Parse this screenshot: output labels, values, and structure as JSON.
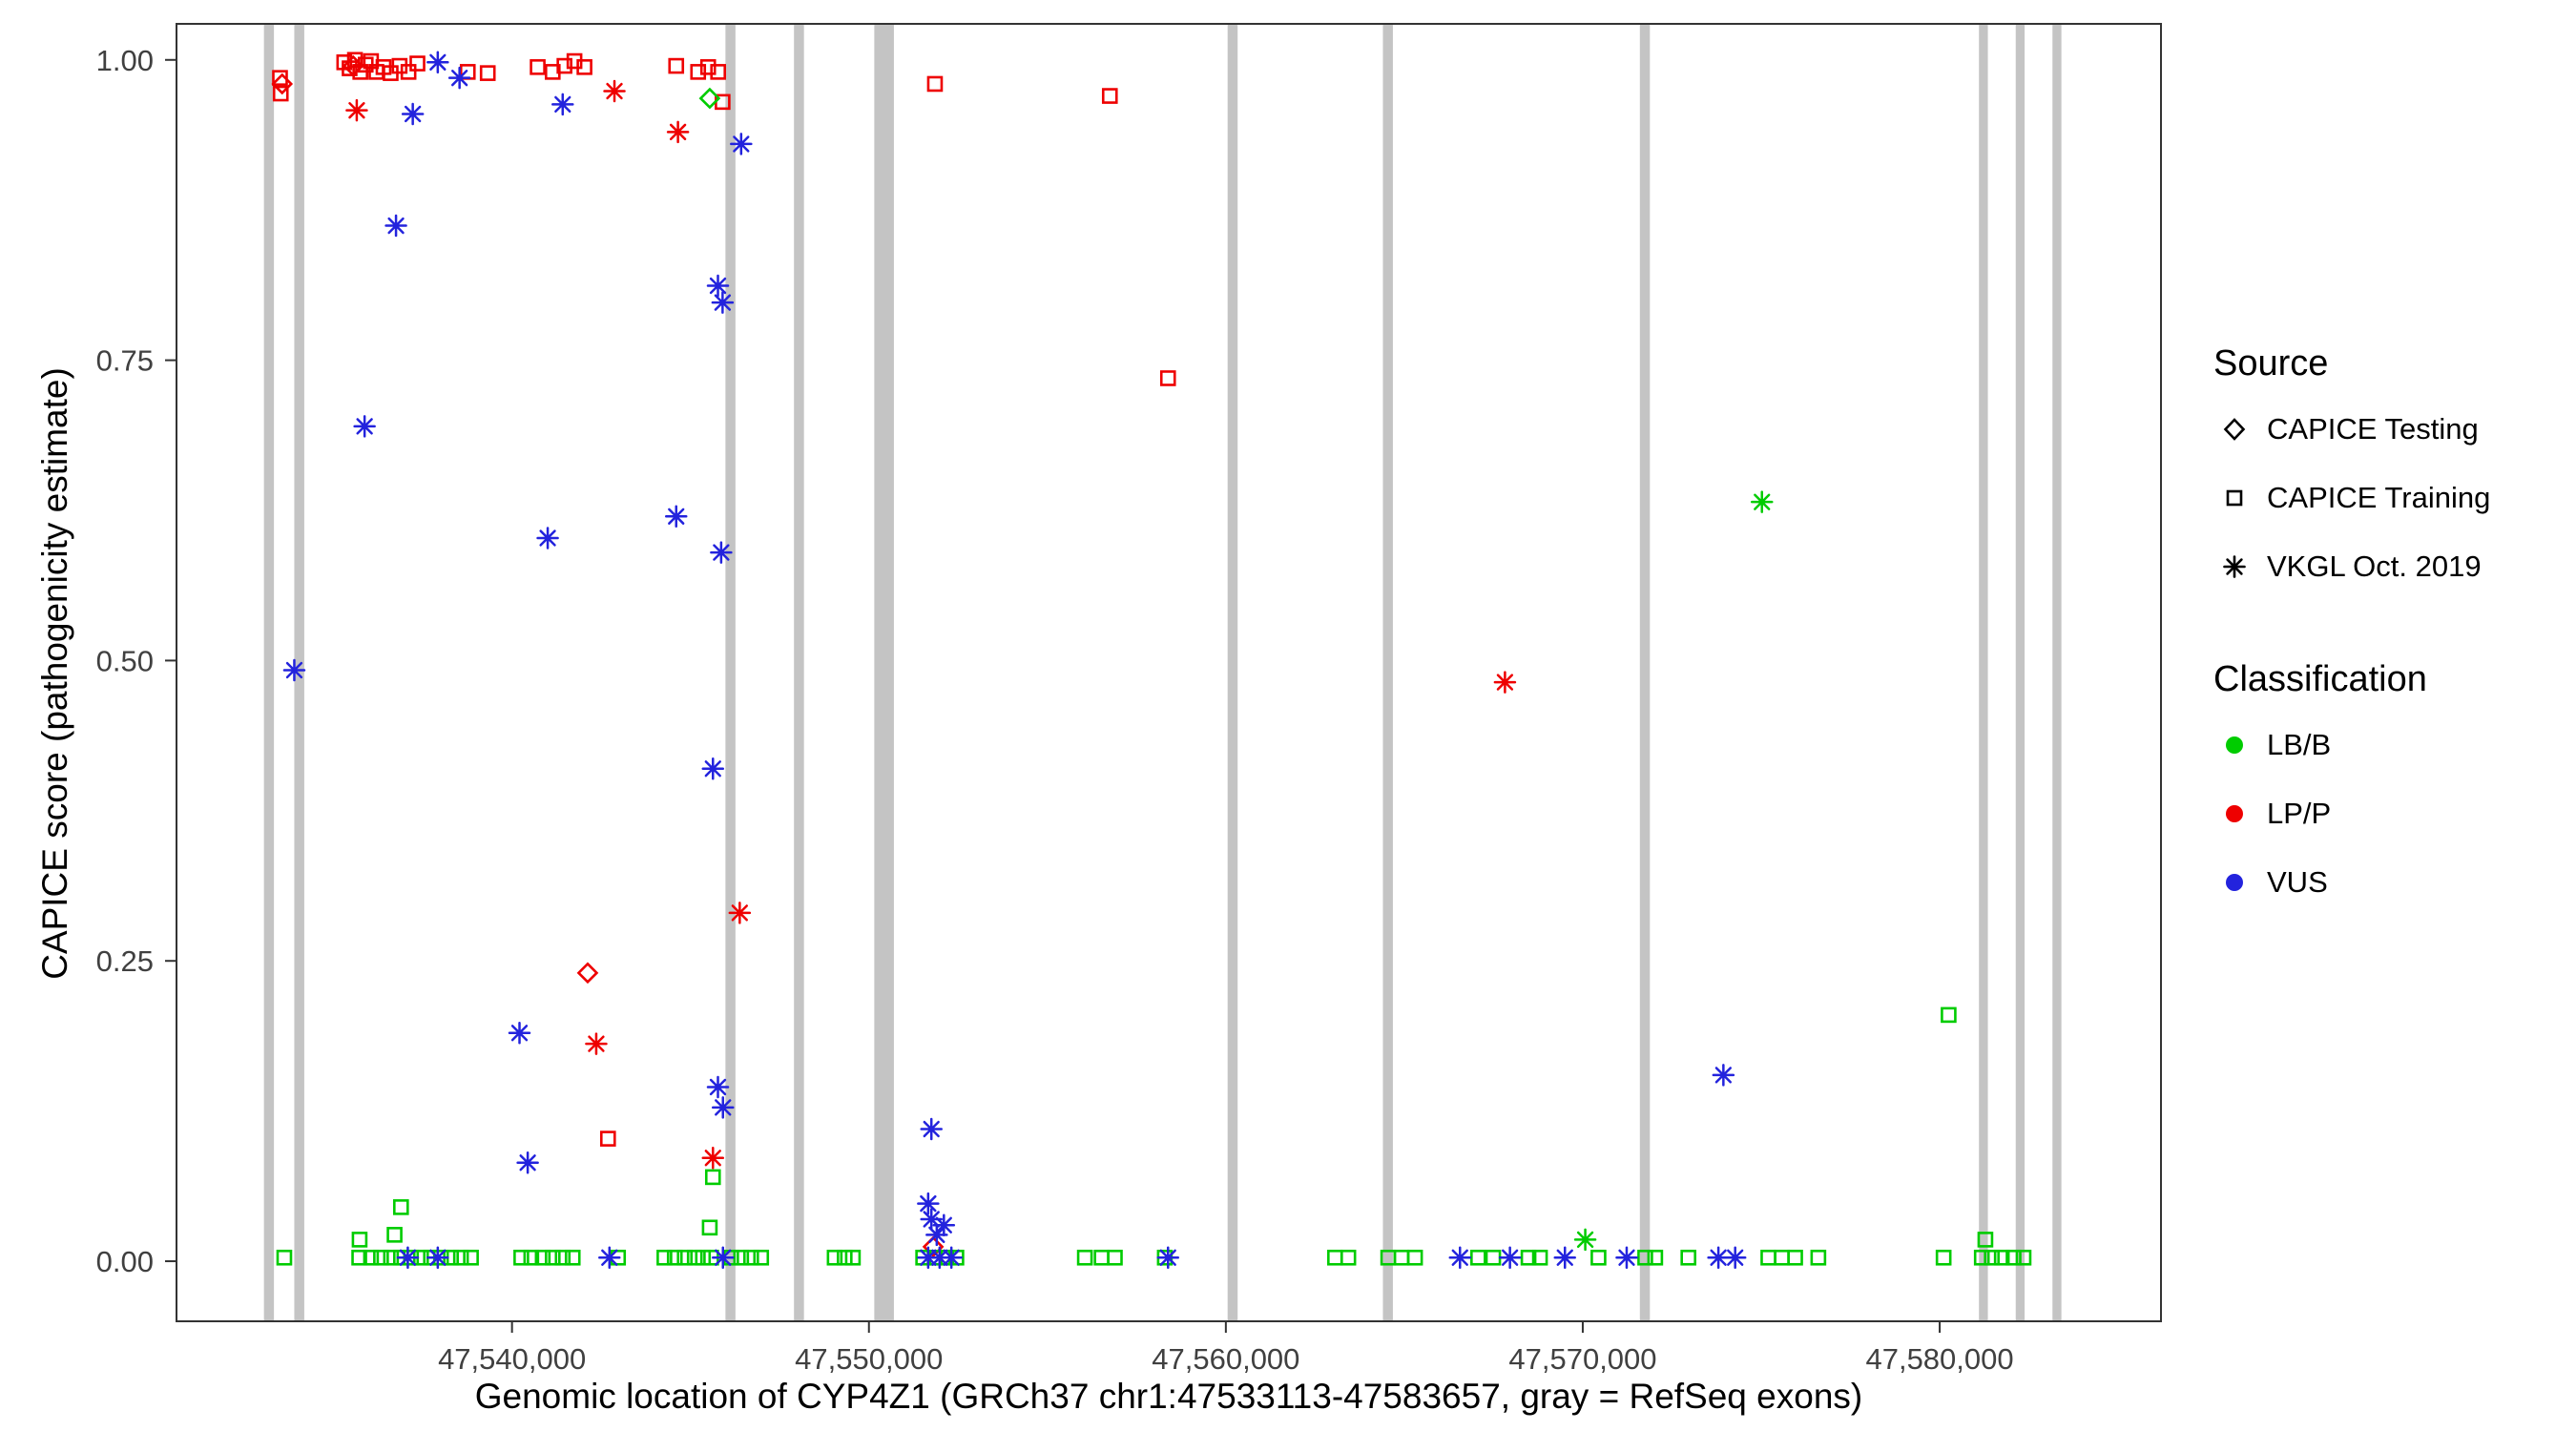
{
  "chart_data": {
    "type": "scatter",
    "title": "",
    "xlabel": "Genomic location of CYP4Z1 (GRCh37 chr1:47533113-47583657, gray = RefSeq exons)",
    "ylabel": "CAPICE score (pathogenicity estimate)",
    "xlim": [
      47530600,
      47586200
    ],
    "ylim": [
      -0.05,
      1.03
    ],
    "grid": "off",
    "x_ticks": [
      {
        "value": 47540000,
        "label": "47,540,000"
      },
      {
        "value": 47550000,
        "label": "47,550,000"
      },
      {
        "value": 47560000,
        "label": "47,560,000"
      },
      {
        "value": 47570000,
        "label": "47,570,000"
      },
      {
        "value": 47580000,
        "label": "47,580,000"
      }
    ],
    "y_ticks": [
      {
        "value": 0.0,
        "label": "0.00"
      },
      {
        "value": 0.25,
        "label": "0.25"
      },
      {
        "value": 0.5,
        "label": "0.50"
      },
      {
        "value": 0.75,
        "label": "0.75"
      },
      {
        "value": 1.0,
        "label": "1.00"
      }
    ],
    "exon_color": "#c4c4c4",
    "exons": [
      {
        "start": 47533050,
        "end": 47533330
      },
      {
        "start": 47533900,
        "end": 47534180
      },
      {
        "start": 47545980,
        "end": 47546260
      },
      {
        "start": 47547900,
        "end": 47548180
      },
      {
        "start": 47550150,
        "end": 47550700
      },
      {
        "start": 47560050,
        "end": 47560330
      },
      {
        "start": 47564400,
        "end": 47564680
      },
      {
        "start": 47571600,
        "end": 47571880
      },
      {
        "start": 47581100,
        "end": 47581350
      },
      {
        "start": 47582130,
        "end": 47582380
      },
      {
        "start": 47583160,
        "end": 47583410
      }
    ],
    "colors": {
      "lbb": "#00cc00",
      "lpp": "#ee0000",
      "vus": "#2323dd"
    },
    "source_codes": {
      "testing": "CAPICE Testing",
      "training": "CAPICE Training",
      "vkgl": "VKGL Oct. 2019"
    },
    "class_codes": {
      "lbb": "LB/B",
      "lpp": "LP/P",
      "vus": "VUS"
    },
    "point_columns": [
      "position",
      "capice_score",
      "source",
      "classification"
    ],
    "points": [
      [
        47533500,
        0.985,
        "training",
        "lpp"
      ],
      [
        47533520,
        0.972,
        "training",
        "lpp"
      ],
      [
        47533560,
        0.98,
        "testing",
        "lpp"
      ],
      [
        47535300,
        0.998,
        "training",
        "lpp"
      ],
      [
        47535450,
        0.993,
        "training",
        "lpp"
      ],
      [
        47535550,
        0.995,
        "testing",
        "lpp"
      ],
      [
        47535600,
        1.0,
        "training",
        "lpp"
      ],
      [
        47535750,
        0.99,
        "training",
        "lpp"
      ],
      [
        47535900,
        0.996,
        "training",
        "lpp"
      ],
      [
        47536050,
        0.999,
        "training",
        "lpp"
      ],
      [
        47536200,
        0.99,
        "training",
        "lpp"
      ],
      [
        47536400,
        0.994,
        "training",
        "lpp"
      ],
      [
        47536600,
        0.989,
        "training",
        "lpp"
      ],
      [
        47536850,
        0.995,
        "training",
        "lpp"
      ],
      [
        47537100,
        0.99,
        "training",
        "lpp"
      ],
      [
        47537350,
        0.997,
        "training",
        "lpp"
      ],
      [
        47535650,
        0.958,
        "vkgl",
        "lpp"
      ],
      [
        47538760,
        0.99,
        "training",
        "lpp"
      ],
      [
        47539320,
        0.989,
        "training",
        "lpp"
      ],
      [
        47540720,
        0.994,
        "training",
        "lpp"
      ],
      [
        47541140,
        0.99,
        "training",
        "lpp"
      ],
      [
        47541470,
        0.995,
        "training",
        "lpp"
      ],
      [
        47541750,
        0.999,
        "training",
        "lpp"
      ],
      [
        47542030,
        0.994,
        "training",
        "lpp"
      ],
      [
        47542870,
        0.974,
        "vkgl",
        "lpp"
      ],
      [
        47544600,
        0.995,
        "training",
        "lpp"
      ],
      [
        47544650,
        0.94,
        "vkgl",
        "lpp"
      ],
      [
        47545215,
        0.99,
        "training",
        "lpp"
      ],
      [
        47545495,
        0.994,
        "training",
        "lpp"
      ],
      [
        47545775,
        0.99,
        "training",
        "lpp"
      ],
      [
        47545900,
        0.965,
        "training",
        "lpp"
      ],
      [
        47551850,
        0.98,
        "training",
        "lpp"
      ],
      [
        47556750,
        0.97,
        "training",
        "lpp"
      ],
      [
        47558380,
        0.735,
        "training",
        "lpp"
      ],
      [
        47567820,
        0.482,
        "vkgl",
        "lpp"
      ],
      [
        47546380,
        0.29,
        "vkgl",
        "lpp"
      ],
      [
        47542120,
        0.24,
        "testing",
        "lpp"
      ],
      [
        47542360,
        0.181,
        "vkgl",
        "lpp"
      ],
      [
        47542690,
        0.102,
        "training",
        "lpp"
      ],
      [
        47545630,
        0.086,
        "vkgl",
        "lpp"
      ],
      [
        47551800,
        0.012,
        "testing",
        "lpp"
      ],
      [
        47537220,
        0.955,
        "vkgl",
        "vus"
      ],
      [
        47537920,
        0.998,
        "vkgl",
        "vus"
      ],
      [
        47538530,
        0.985,
        "vkgl",
        "vus"
      ],
      [
        47541420,
        0.963,
        "vkgl",
        "vus"
      ],
      [
        47546420,
        0.93,
        "vkgl",
        "vus"
      ],
      [
        47536750,
        0.862,
        "vkgl",
        "vus"
      ],
      [
        47535870,
        0.695,
        "vkgl",
        "vus"
      ],
      [
        47533900,
        0.492,
        "vkgl",
        "vus"
      ],
      [
        47541000,
        0.602,
        "vkgl",
        "vus"
      ],
      [
        47544600,
        0.62,
        "vkgl",
        "vus"
      ],
      [
        47545770,
        0.812,
        "vkgl",
        "vus"
      ],
      [
        47545900,
        0.798,
        "vkgl",
        "vus"
      ],
      [
        47545860,
        0.59,
        "vkgl",
        "vus"
      ],
      [
        47545630,
        0.41,
        "vkgl",
        "vus"
      ],
      [
        47540210,
        0.19,
        "vkgl",
        "vus"
      ],
      [
        47540440,
        0.082,
        "vkgl",
        "vus"
      ],
      [
        47545770,
        0.145,
        "vkgl",
        "vus"
      ],
      [
        47545910,
        0.128,
        "vkgl",
        "vus"
      ],
      [
        47551750,
        0.11,
        "vkgl",
        "vus"
      ],
      [
        47551660,
        0.048,
        "vkgl",
        "vus"
      ],
      [
        47551750,
        0.035,
        "vkgl",
        "vus"
      ],
      [
        47551900,
        0.022,
        "vkgl",
        "vus"
      ],
      [
        47552100,
        0.03,
        "vkgl",
        "vus"
      ],
      [
        47573940,
        0.155,
        "vkgl",
        "vus"
      ],
      [
        47545540,
        0.968,
        "testing",
        "lbb"
      ],
      [
        47575020,
        0.632,
        "vkgl",
        "lbb"
      ],
      [
        47580250,
        0.205,
        "training",
        "lbb"
      ],
      [
        47536890,
        0.045,
        "training",
        "lbb"
      ],
      [
        47535730,
        0.018,
        "training",
        "lbb"
      ],
      [
        47536710,
        0.022,
        "training",
        "lbb"
      ],
      [
        47545630,
        0.07,
        "training",
        "lbb"
      ],
      [
        47545540,
        0.028,
        "training",
        "lbb"
      ],
      [
        47570070,
        0.018,
        "vkgl",
        "lbb"
      ],
      [
        47581280,
        0.018,
        "training",
        "lbb"
      ],
      [
        47533620,
        0.003,
        "training",
        "lbb"
      ],
      [
        47535720,
        0.003,
        "training",
        "lbb"
      ],
      [
        47536050,
        0.003,
        "training",
        "lbb"
      ],
      [
        47536330,
        0.003,
        "training",
        "lbb"
      ],
      [
        47536610,
        0.003,
        "training",
        "lbb"
      ],
      [
        47536890,
        0.003,
        "training",
        "lbb"
      ],
      [
        47537170,
        0.003,
        "training",
        "lbb"
      ],
      [
        47537450,
        0.003,
        "training",
        "lbb"
      ],
      [
        47537730,
        0.003,
        "training",
        "lbb"
      ],
      [
        47538010,
        0.003,
        "training",
        "lbb"
      ],
      [
        47538290,
        0.003,
        "training",
        "lbb"
      ],
      [
        47538570,
        0.003,
        "training",
        "lbb"
      ],
      [
        47538850,
        0.003,
        "training",
        "lbb"
      ],
      [
        47540260,
        0.003,
        "training",
        "lbb"
      ],
      [
        47540540,
        0.003,
        "training",
        "lbb"
      ],
      [
        47540860,
        0.003,
        "training",
        "lbb"
      ],
      [
        47541140,
        0.003,
        "training",
        "lbb"
      ],
      [
        47541420,
        0.003,
        "training",
        "lbb"
      ],
      [
        47541700,
        0.003,
        "training",
        "lbb"
      ],
      [
        47542970,
        0.003,
        "training",
        "lbb"
      ],
      [
        47544270,
        0.003,
        "training",
        "lbb"
      ],
      [
        47544560,
        0.003,
        "training",
        "lbb"
      ],
      [
        47544840,
        0.003,
        "training",
        "lbb"
      ],
      [
        47545120,
        0.003,
        "training",
        "lbb"
      ],
      [
        47545350,
        0.003,
        "training",
        "lbb"
      ],
      [
        47545580,
        0.003,
        "training",
        "lbb"
      ],
      [
        47546140,
        0.003,
        "training",
        "lbb"
      ],
      [
        47546420,
        0.003,
        "training",
        "lbb"
      ],
      [
        47546700,
        0.003,
        "training",
        "lbb"
      ],
      [
        47546980,
        0.003,
        "training",
        "lbb"
      ],
      [
        47549040,
        0.003,
        "training",
        "lbb"
      ],
      [
        47549320,
        0.003,
        "training",
        "lbb"
      ],
      [
        47549550,
        0.003,
        "training",
        "lbb"
      ],
      [
        47551520,
        0.003,
        "training",
        "lbb"
      ],
      [
        47551840,
        0.003,
        "training",
        "lbb"
      ],
      [
        47552170,
        0.003,
        "training",
        "lbb"
      ],
      [
        47552450,
        0.003,
        "training",
        "lbb"
      ],
      [
        47556050,
        0.003,
        "training",
        "lbb"
      ],
      [
        47556520,
        0.003,
        "training",
        "lbb"
      ],
      [
        47556890,
        0.003,
        "training",
        "lbb"
      ],
      [
        47558290,
        0.003,
        "training",
        "lbb"
      ],
      [
        47563060,
        0.003,
        "training",
        "lbb"
      ],
      [
        47563430,
        0.003,
        "training",
        "lbb"
      ],
      [
        47564550,
        0.003,
        "training",
        "lbb"
      ],
      [
        47564920,
        0.003,
        "training",
        "lbb"
      ],
      [
        47565300,
        0.003,
        "training",
        "lbb"
      ],
      [
        47567070,
        0.003,
        "training",
        "lbb"
      ],
      [
        47567490,
        0.003,
        "training",
        "lbb"
      ],
      [
        47568480,
        0.003,
        "training",
        "lbb"
      ],
      [
        47568800,
        0.003,
        "training",
        "lbb"
      ],
      [
        47570440,
        0.003,
        "training",
        "lbb"
      ],
      [
        47571750,
        0.003,
        "training",
        "lbb"
      ],
      [
        47572030,
        0.003,
        "training",
        "lbb"
      ],
      [
        47572960,
        0.003,
        "training",
        "lbb"
      ],
      [
        47575200,
        0.003,
        "training",
        "lbb"
      ],
      [
        47575580,
        0.003,
        "training",
        "lbb"
      ],
      [
        47575950,
        0.003,
        "training",
        "lbb"
      ],
      [
        47576600,
        0.003,
        "training",
        "lbb"
      ],
      [
        47580110,
        0.003,
        "training",
        "lbb"
      ],
      [
        47581180,
        0.003,
        "training",
        "lbb"
      ],
      [
        47581460,
        0.003,
        "training",
        "lbb"
      ],
      [
        47581740,
        0.003,
        "training",
        "lbb"
      ],
      [
        47582070,
        0.003,
        "training",
        "lbb"
      ],
      [
        47582350,
        0.003,
        "training",
        "lbb"
      ],
      [
        47537080,
        0.003,
        "vkgl",
        "vus"
      ],
      [
        47537920,
        0.003,
        "vkgl",
        "vus"
      ],
      [
        47542730,
        0.003,
        "vkgl",
        "vus"
      ],
      [
        47545910,
        0.003,
        "vkgl",
        "vus"
      ],
      [
        47551660,
        0.003,
        "vkgl",
        "vus"
      ],
      [
        47551980,
        0.003,
        "vkgl",
        "vus"
      ],
      [
        47552310,
        0.003,
        "vkgl",
        "vus"
      ],
      [
        47558380,
        0.003,
        "vkgl",
        "vus"
      ],
      [
        47566560,
        0.003,
        "vkgl",
        "vus"
      ],
      [
        47567960,
        0.003,
        "vkgl",
        "vus"
      ],
      [
        47569500,
        0.003,
        "vkgl",
        "vus"
      ],
      [
        47571230,
        0.003,
        "vkgl",
        "vus"
      ],
      [
        47573800,
        0.003,
        "vkgl",
        "vus"
      ],
      [
        47574270,
        0.003,
        "vkgl",
        "vus"
      ]
    ]
  },
  "legend": {
    "source": {
      "title": "Source",
      "items": [
        {
          "label": "CAPICE Testing",
          "shape": "diamond"
        },
        {
          "label": "CAPICE Training",
          "shape": "square"
        },
        {
          "label": "VKGL Oct. 2019",
          "shape": "asterisk"
        }
      ]
    },
    "classification": {
      "title": "Classification",
      "items": [
        {
          "label": "LB/B",
          "color": "#00cc00"
        },
        {
          "label": "LP/P",
          "color": "#ee0000"
        },
        {
          "label": "VUS",
          "color": "#2323dd"
        }
      ]
    }
  }
}
